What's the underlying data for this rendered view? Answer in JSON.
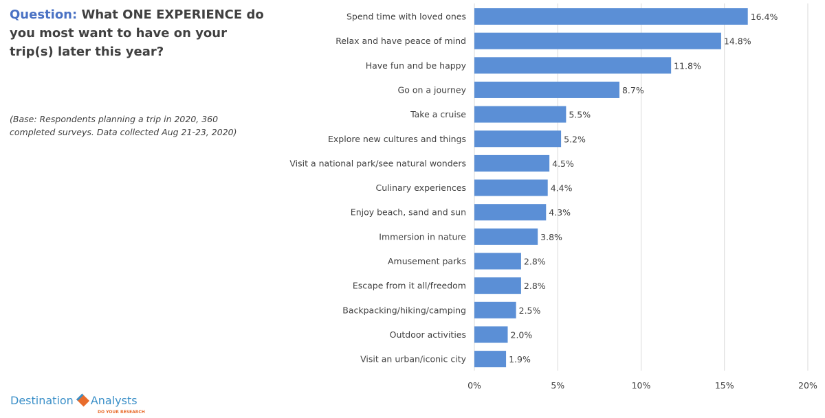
{
  "header": {
    "question_label": "Question:",
    "question_text": "What ONE EXPERIENCE do you most want to have on your trip(s) later this year?",
    "base_note": "(Base: Respondents planning a trip in 2020, 360 completed surveys. Data collected Aug 21-23, 2020)"
  },
  "logo": {
    "name_left": "Destination",
    "name_right": "Analysts",
    "tagline": "DO YOUR RESEARCH"
  },
  "colors": {
    "bar": "#5b8fd6",
    "accent": "#4a72c4",
    "grid": "#d9d9d9"
  },
  "chart_data": {
    "type": "bar",
    "orientation": "horizontal",
    "title": "What ONE EXPERIENCE do you most want to have on your trip(s) later this year?",
    "categories": [
      "Spend time with loved ones",
      "Relax and have peace of mind",
      "Have fun and be happy",
      "Go on a journey",
      "Take a cruise",
      "Explore new cultures and things",
      "Visit a national park/see natural wonders",
      "Culinary experiences",
      "Enjoy beach, sand and sun",
      "Immersion in nature",
      "Amusement parks",
      "Escape from it all/freedom",
      "Backpacking/hiking/camping",
      "Outdoor activities",
      "Visit an urban/iconic city"
    ],
    "values": [
      16.4,
      14.8,
      11.8,
      8.7,
      5.5,
      5.2,
      4.5,
      4.4,
      4.3,
      3.8,
      2.8,
      2.8,
      2.5,
      2.0,
      1.9
    ],
    "value_labels": [
      "16.4%",
      "14.8%",
      "11.8%",
      "8.7%",
      "5.5%",
      "5.2%",
      "4.5%",
      "4.4%",
      "4.3%",
      "3.8%",
      "2.8%",
      "2.8%",
      "2.5%",
      "2.0%",
      "1.9%"
    ],
    "xlim": [
      0,
      20
    ],
    "xticks": [
      0,
      5,
      10,
      15,
      20
    ],
    "xtick_labels": [
      "0%",
      "5%",
      "10%",
      "15%",
      "20%"
    ],
    "grid": true,
    "xlabel": "",
    "ylabel": ""
  }
}
